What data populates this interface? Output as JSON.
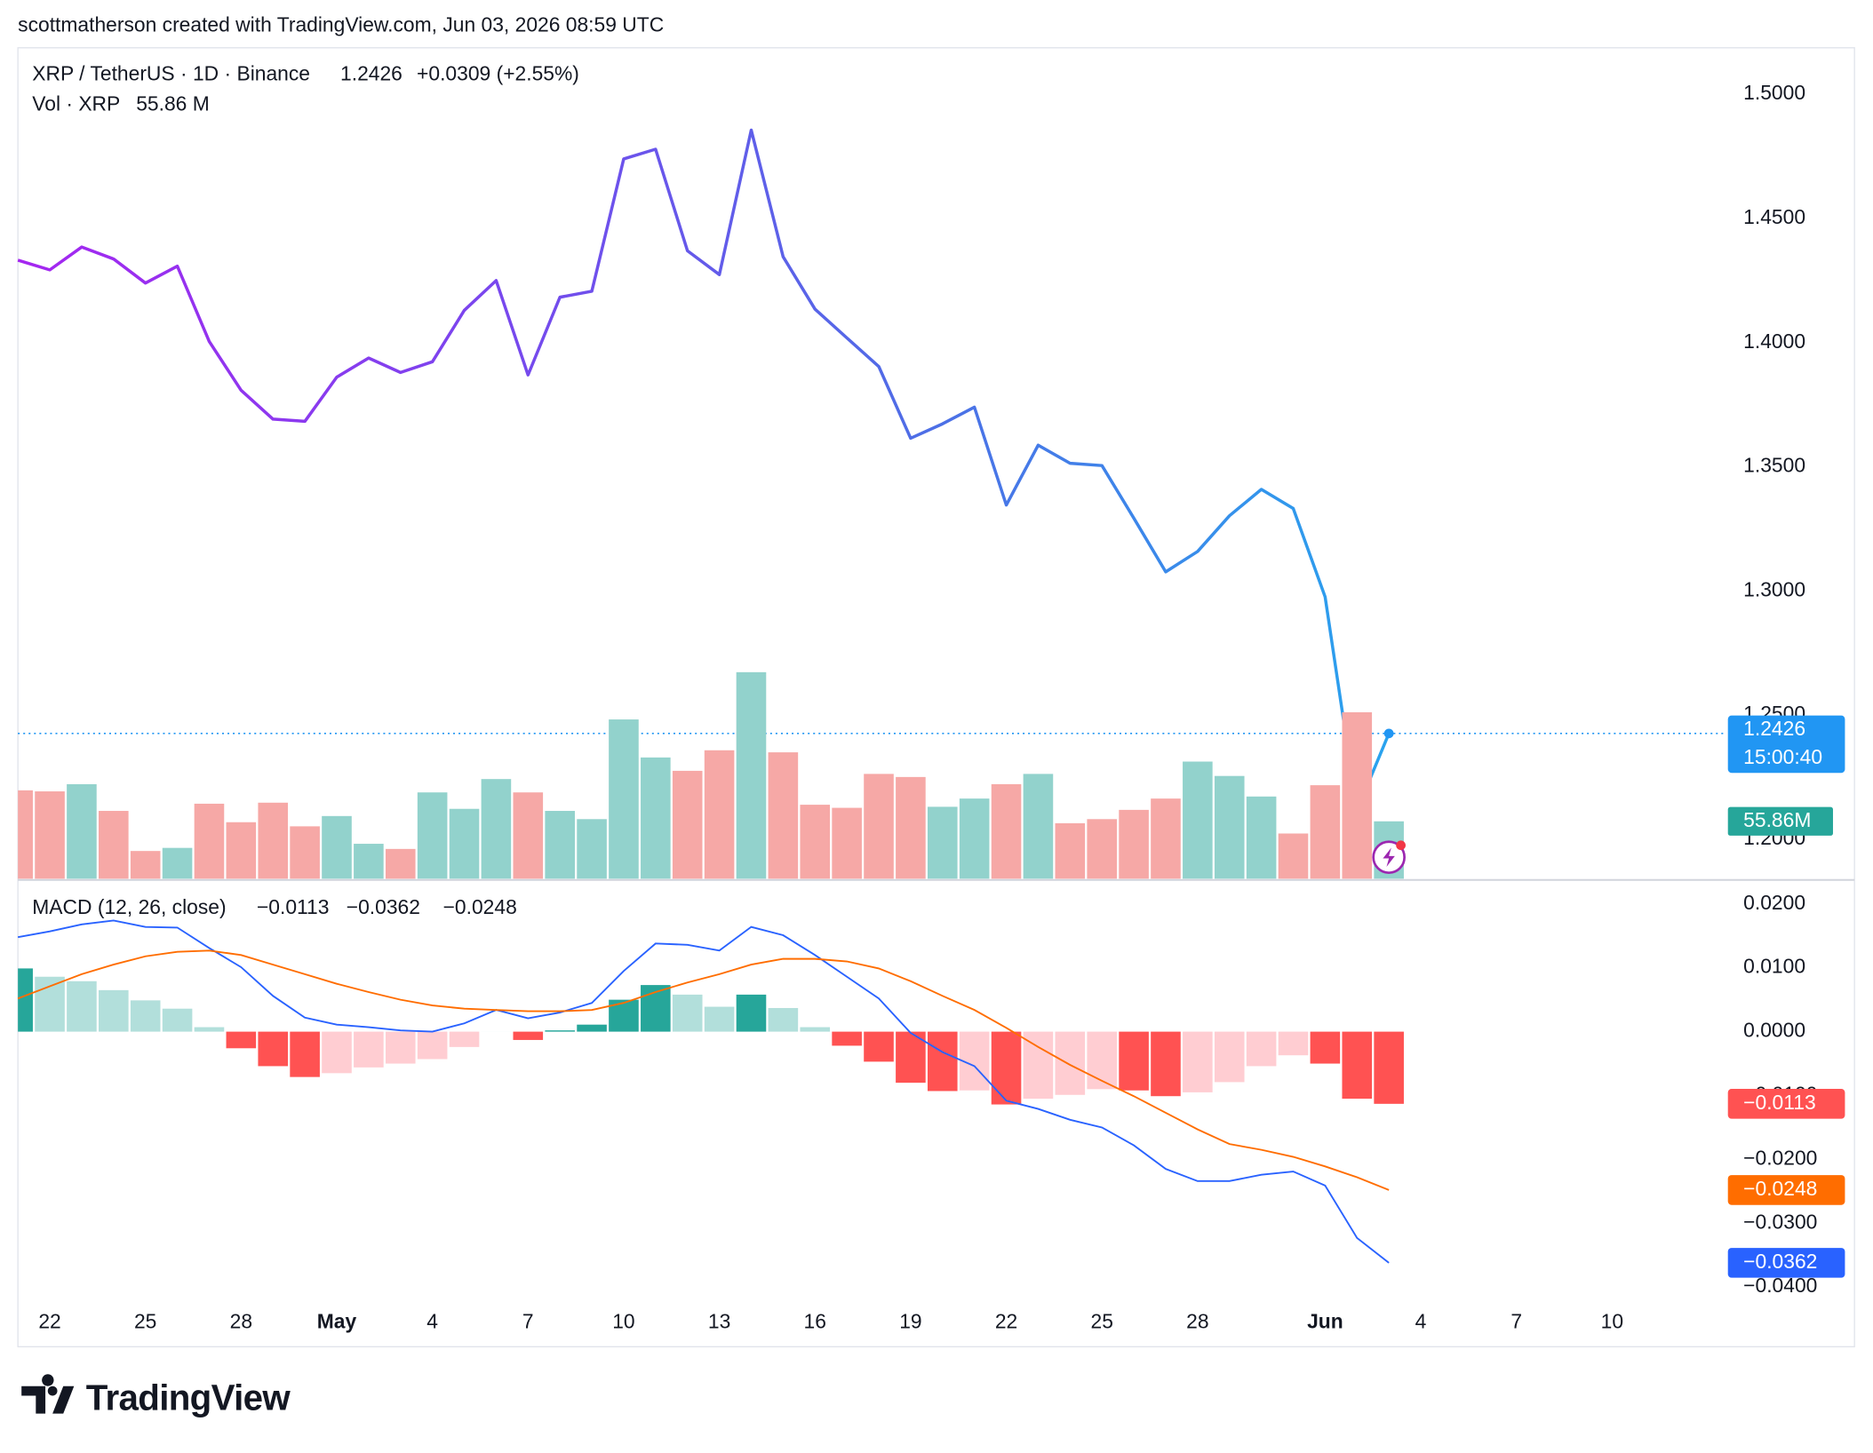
{
  "header": {
    "attribution": "scottmatherson created with TradingView.com, Jun 03, 2026 08:59 UTC",
    "logo": "TradingView"
  },
  "chart_data": [
    {
      "type": "line",
      "title": "XRP / TetherUS · 1D · Binance",
      "last_value_label": "1.2426",
      "change_label": "+0.0309 (+2.55%)",
      "countdown": "15:00:40",
      "gradient": [
        "#a526f0",
        "#7b45ee",
        "#4d6fe6",
        "#29a3ee"
      ],
      "last_color": "#2196f3",
      "categories": [
        null,
        "22",
        null,
        null,
        "25",
        null,
        null,
        "28",
        null,
        null,
        "May",
        null,
        null,
        "4",
        null,
        null,
        "7",
        null,
        null,
        "10",
        null,
        null,
        "13",
        null,
        null,
        "16",
        null,
        null,
        "19",
        null,
        null,
        "22",
        null,
        null,
        "25",
        null,
        null,
        "28",
        null,
        null,
        null,
        "Jun",
        null,
        null,
        "4",
        null,
        null,
        "7",
        null,
        null,
        "10",
        null,
        null,
        null
      ],
      "values": [
        1.4332,
        1.4293,
        1.4385,
        1.4337,
        1.424,
        1.4308,
        1.4005,
        1.3808,
        1.3692,
        1.3683,
        1.3861,
        1.3938,
        1.388,
        1.3923,
        1.413,
        1.425,
        1.387,
        1.4183,
        1.4207,
        1.474,
        1.4779,
        1.437,
        1.4274,
        1.4856,
        1.4346,
        1.4135,
        1.4019,
        1.3904,
        1.3615,
        1.3673,
        1.374,
        1.3346,
        1.3587,
        1.3514,
        1.3505,
        1.3293,
        1.3077,
        1.3159,
        1.3303,
        1.3409,
        1.3332,
        1.2976,
        1.2117,
        1.2426,
        null,
        null,
        null,
        null,
        null,
        null,
        null,
        null,
        null,
        null
      ],
      "ylim": [
        1.1841,
        1.5178
      ],
      "yticks": [
        {
          "value": 1.2,
          "label": "1.2000"
        },
        {
          "value": 1.25,
          "label": "1.2500"
        },
        {
          "value": 1.3,
          "label": "1.3000"
        },
        {
          "value": 1.35,
          "label": "1.3500"
        },
        {
          "value": 1.4,
          "label": "1.4000"
        },
        {
          "value": 1.45,
          "label": "1.4500"
        },
        {
          "value": 1.5,
          "label": "1.5000"
        }
      ],
      "grid": true
    },
    {
      "type": "bar",
      "title": "Vol · XRP",
      "header_label": "55.86 M",
      "axis_label": "55.86M",
      "up_color": "#92d2cc",
      "down_color": "#f6a8a6",
      "tag_color": "#26a69a",
      "values": [
        86,
        85,
        92,
        66,
        27,
        30,
        73,
        55,
        74,
        51,
        61,
        34,
        29,
        84,
        68,
        97,
        84,
        66,
        58,
        155,
        118,
        105,
        125,
        201,
        123,
        72,
        69,
        102,
        99,
        70,
        78,
        92,
        102,
        54,
        58,
        67,
        78,
        114,
        100,
        80,
        44,
        91,
        162,
        55.86,
        null,
        null,
        null,
        null,
        null,
        null,
        null,
        null,
        null,
        null
      ]
    },
    {
      "type": "macd",
      "title": "MACD (12, 26, close)",
      "histogram": {
        "last_label": "−0.0113",
        "header_color": "#f23645",
        "tag_color": "#ff5252",
        "colors": [
          "#26a69a",
          "#b2dfdb",
          "#ffcdd2",
          "#ff5252"
        ],
        "values": [
          0.0099,
          0.0086,
          0.0079,
          0.0065,
          0.0049,
          0.0036,
          0.0007,
          -0.0026,
          -0.0054,
          -0.0071,
          -0.0065,
          -0.0056,
          -0.005,
          -0.0043,
          -0.0024,
          0,
          -0.0013,
          0.0002,
          0.0011,
          0.005,
          0.0073,
          0.0058,
          0.0039,
          0.0058,
          0.0037,
          0.0007,
          -0.0022,
          -0.0047,
          -0.008,
          -0.0093,
          -0.0092,
          -0.0114,
          -0.0105,
          -0.0099,
          -0.009,
          -0.0092,
          -0.0101,
          -0.0095,
          -0.0079,
          -0.0054,
          -0.0037,
          -0.005,
          -0.0105,
          -0.0113,
          null,
          null,
          null,
          null,
          null,
          null,
          null,
          null,
          null,
          null
        ]
      },
      "series": [
        {
          "color": "#2962ff",
          "last_label": "−0.0362",
          "values": [
            0.0148,
            0.0157,
            0.0168,
            0.0174,
            0.0164,
            0.0163,
            0.0131,
            0.0101,
            0.0056,
            0.0022,
            0.0011,
            0.0007,
            0.0002,
            0,
            0.0013,
            0.0034,
            0.0021,
            0.003,
            0.0045,
            0.0095,
            0.0138,
            0.0136,
            0.0127,
            0.0164,
            0.0151,
            0.012,
            0.0086,
            0.0052,
            -0.0002,
            -0.0032,
            -0.0054,
            -0.0108,
            -0.0121,
            -0.0138,
            -0.015,
            -0.0178,
            -0.0215,
            -0.0234,
            -0.0234,
            -0.0224,
            -0.0219,
            -0.0241,
            -0.0323,
            -0.0362,
            null,
            null,
            null,
            null,
            null,
            null,
            null,
            null,
            null,
            null
          ]
        },
        {
          "color": "#ff6d00",
          "last_label": "−0.0248",
          "values": [
            0.0052,
            0.0071,
            0.009,
            0.0105,
            0.0118,
            0.0125,
            0.0127,
            0.012,
            0.0105,
            0.009,
            0.0075,
            0.0062,
            0.005,
            0.0041,
            0.0036,
            0.0034,
            0.0032,
            0.0032,
            0.0034,
            0.0045,
            0.0062,
            0.0077,
            0.009,
            0.0105,
            0.0114,
            0.0114,
            0.011,
            0.0099,
            0.0079,
            0.0056,
            0.0034,
            0.0006,
            -0.0024,
            -0.0052,
            -0.0077,
            -0.0101,
            -0.0127,
            -0.0153,
            -0.0176,
            -0.0185,
            -0.0196,
            -0.0211,
            -0.0228,
            -0.0248,
            null,
            null,
            null,
            null,
            null,
            null,
            null,
            null,
            null,
            null
          ]
        }
      ],
      "ylim": [
        -0.0413,
        0.0232
      ],
      "yticks": [
        {
          "value": 0.02,
          "label": "0.0200"
        },
        {
          "value": 0.01,
          "label": "0.0100"
        },
        {
          "value": 0,
          "label": "0.0000"
        },
        {
          "value": -0.01,
          "label": "−0.0100"
        },
        {
          "value": -0.02,
          "label": "−0.0200"
        },
        {
          "value": -0.03,
          "label": "−0.0300"
        },
        {
          "value": -0.04,
          "label": "−0.0400"
        }
      ],
      "grid": true
    }
  ]
}
